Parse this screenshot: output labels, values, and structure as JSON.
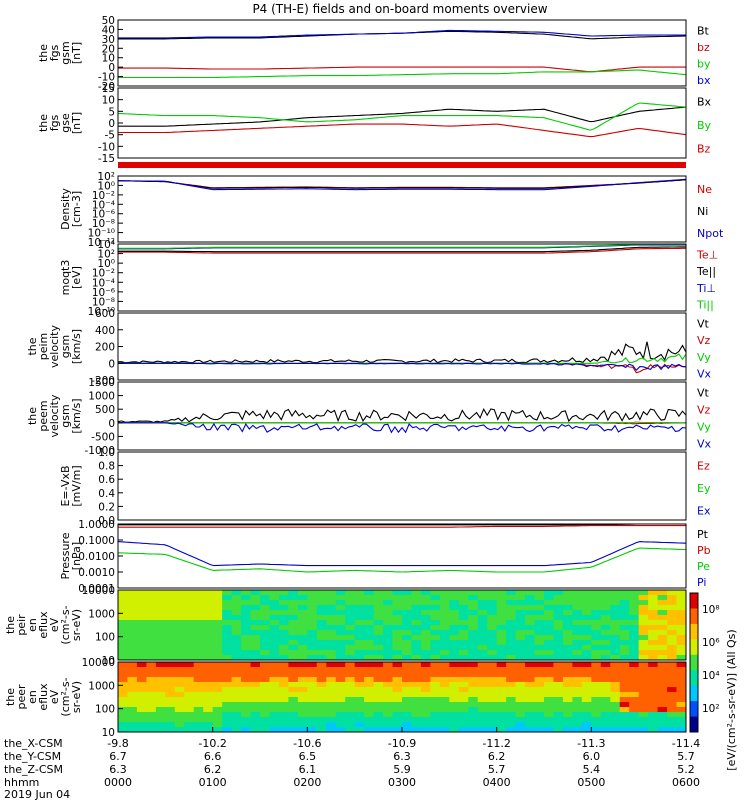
{
  "title": "P4 (TH-E) fields and on-board moments overview",
  "colors": {
    "black": "#000000",
    "red": "#cc0000",
    "green": "#00cc00",
    "blue": "#0000cc"
  },
  "chart_data": [
    {
      "id": "fgs-gsm",
      "type": "line",
      "ylabel": [
        "the",
        "fgs",
        "gsm",
        "[nT]"
      ],
      "yticks": [
        "50",
        "40",
        "30",
        "20",
        "10",
        "0",
        "-10",
        "-20"
      ],
      "ylim": [
        -20,
        50
      ],
      "legend": [
        {
          "name": "Bt",
          "color": "black"
        },
        {
          "name": "bz",
          "color": "red"
        },
        {
          "name": "by",
          "color": "green"
        },
        {
          "name": "bx",
          "color": "blue"
        }
      ],
      "series": [
        {
          "name": "Bt",
          "color": "black",
          "values": [
            30,
            30,
            31,
            31,
            33,
            35,
            36,
            38,
            37,
            35,
            30,
            32,
            33
          ]
        },
        {
          "name": "bz",
          "color": "red",
          "values": [
            -1,
            -1,
            -2,
            -2,
            -1,
            0,
            0,
            0,
            0,
            0,
            -5,
            0,
            0
          ]
        },
        {
          "name": "by",
          "color": "green",
          "values": [
            -11,
            -11,
            -11,
            -10,
            -9,
            -9,
            -8,
            -7,
            -7,
            -5,
            -5,
            -3,
            -8
          ]
        },
        {
          "name": "bx",
          "color": "blue",
          "values": [
            31,
            31,
            32,
            32,
            34,
            35,
            36,
            39,
            38,
            37,
            33,
            34,
            34
          ]
        }
      ]
    },
    {
      "id": "fgs-gse",
      "type": "line",
      "ylabel": [
        "the",
        "fgs",
        "gse",
        "[nT]"
      ],
      "yticks": [
        "15",
        "10",
        "5",
        "0",
        "-5",
        "-10",
        "-15"
      ],
      "ylim": [
        -18,
        15
      ],
      "legend": [
        {
          "name": "Bx",
          "color": "black"
        },
        {
          "name": "By",
          "color": "green"
        },
        {
          "name": "Bz",
          "color": "red"
        }
      ],
      "series": [
        {
          "name": "Bx",
          "color": "black",
          "values": [
            -3,
            -3,
            -2,
            -1,
            1,
            2,
            3,
            5,
            4,
            5,
            -1,
            4,
            6
          ]
        },
        {
          "name": "By",
          "color": "green",
          "values": [
            3,
            2,
            2,
            1,
            -1,
            0,
            2,
            2,
            2,
            1,
            -5,
            8,
            6
          ]
        },
        {
          "name": "Bz",
          "color": "red",
          "values": [
            -6,
            -6,
            -5,
            -4,
            -3,
            -2,
            -2,
            -3,
            -2,
            -5,
            -8,
            -4,
            -7
          ]
        }
      ]
    },
    {
      "id": "density",
      "type": "line",
      "ylabel": [
        "Density",
        "[cm-3]"
      ],
      "yticks": [
        "10²",
        "10⁰",
        "10⁻²",
        "10⁻⁴",
        "10⁻⁶",
        "10⁻⁸",
        "10⁻¹⁰",
        "10⁻¹²"
      ],
      "ylim_log10": [
        -12,
        2
      ],
      "legend": [
        {
          "name": "Ne",
          "color": "red"
        },
        {
          "name": "Ni",
          "color": "black"
        },
        {
          "name": "Npot",
          "color": "blue"
        }
      ],
      "series": [
        {
          "name": "Ne",
          "color": "red",
          "values_log10": [
            1,
            0.8,
            -0.5,
            -0.4,
            -0.3,
            -0.5,
            -0.4,
            -0.4,
            -0.5,
            -0.5,
            0,
            0.5,
            1.2
          ]
        },
        {
          "name": "Ni",
          "color": "black",
          "values_log10": [
            1,
            0.8,
            -0.6,
            -0.5,
            -0.4,
            -0.6,
            -0.5,
            -0.5,
            -0.6,
            -0.6,
            -0.1,
            0.5,
            1.2
          ]
        },
        {
          "name": "Npot",
          "color": "blue",
          "values_log10": [
            1,
            0.9,
            -0.9,
            -0.8,
            -0.7,
            -0.9,
            -0.8,
            -0.8,
            -0.9,
            -0.9,
            -0.2,
            0.6,
            1.3
          ]
        }
      ]
    },
    {
      "id": "temperature",
      "type": "line",
      "ylabel": [
        "moqt3",
        "[eV]"
      ],
      "yticks": [
        "10⁴",
        "10²",
        "10⁰",
        "10⁻²",
        "10⁻⁴",
        "10⁻⁶",
        "10⁻⁸",
        "10⁻¹⁰"
      ],
      "ylim_log10": [
        -10,
        4
      ],
      "legend": [
        {
          "name": "Te⊥",
          "color": "red"
        },
        {
          "name": "Te||",
          "color": "black"
        },
        {
          "name": "Ti⊥",
          "color": "blue"
        },
        {
          "name": "Ti||",
          "color": "green"
        }
      ],
      "series": [
        {
          "name": "Te⊥",
          "color": "red",
          "values_log10": [
            2.3,
            2.3,
            2.1,
            2.1,
            2.1,
            2.1,
            2.1,
            2.1,
            2.1,
            2.1,
            2.4,
            3.0,
            3.1
          ]
        },
        {
          "name": "Te||",
          "color": "black",
          "values_log10": [
            2.5,
            2.5,
            2.4,
            2.4,
            2.4,
            2.4,
            2.4,
            2.4,
            2.4,
            2.4,
            2.7,
            3.3,
            3.4
          ]
        },
        {
          "name": "Ti⊥",
          "color": "blue",
          "values_log10": [
            3.0,
            3.0,
            3.2,
            3.2,
            3.2,
            3.2,
            3.2,
            3.2,
            3.2,
            3.2,
            3.5,
            3.8,
            3.8
          ]
        },
        {
          "name": "Ti||",
          "color": "green",
          "values_log10": [
            3.1,
            3.1,
            3.3,
            3.3,
            3.3,
            3.3,
            3.3,
            3.3,
            3.3,
            3.3,
            3.6,
            3.9,
            3.9
          ]
        }
      ]
    },
    {
      "id": "peim-velocity",
      "type": "line",
      "ylabel": [
        "the",
        "peim",
        "velocity",
        "gsm",
        "[km/s]"
      ],
      "yticks": [
        "600",
        "400",
        "200",
        "0",
        "-200"
      ],
      "ylim": [
        -200,
        600
      ],
      "legend": [
        {
          "name": "Vt",
          "color": "black"
        },
        {
          "name": "Vz",
          "color": "red"
        },
        {
          "name": "Vy",
          "color": "green"
        },
        {
          "name": "Vx",
          "color": "blue"
        }
      ],
      "series": [
        {
          "name": "Vt",
          "color": "black",
          "values": [
            20,
            20,
            25,
            30,
            30,
            30,
            30,
            35,
            35,
            40,
            60,
            200,
            150
          ]
        },
        {
          "name": "Vz",
          "color": "red",
          "values": [
            0,
            0,
            0,
            0,
            0,
            0,
            0,
            0,
            0,
            0,
            -20,
            -80,
            -40
          ]
        },
        {
          "name": "Vy",
          "color": "green",
          "values": [
            0,
            0,
            0,
            0,
            0,
            0,
            0,
            0,
            0,
            0,
            0,
            60,
            80
          ]
        },
        {
          "name": "Vx",
          "color": "blue",
          "values": [
            0,
            0,
            -5,
            -5,
            -5,
            -5,
            -5,
            -5,
            -5,
            -10,
            -30,
            -60,
            -40
          ]
        }
      ]
    },
    {
      "id": "peem-velocity",
      "type": "line",
      "ylabel": [
        "the",
        "peem",
        "velocity",
        "gsm",
        "[km/s]"
      ],
      "yticks": [
        "1500",
        "1000",
        "500",
        "0",
        "-500",
        "-1000"
      ],
      "ylim": [
        -1000,
        1500
      ],
      "legend": [
        {
          "name": "Vt",
          "color": "black"
        },
        {
          "name": "Vz",
          "color": "red"
        },
        {
          "name": "Vy",
          "color": "green"
        },
        {
          "name": "Vx",
          "color": "blue"
        }
      ],
      "series": [
        {
          "name": "Vt",
          "color": "black",
          "values": [
            50,
            50,
            300,
            350,
            350,
            300,
            350,
            300,
            350,
            300,
            300,
            350,
            350
          ]
        },
        {
          "name": "Vz",
          "color": "red",
          "values": [
            0,
            0,
            0,
            0,
            0,
            0,
            0,
            0,
            0,
            0,
            0,
            -30,
            0
          ]
        },
        {
          "name": "Vy",
          "color": "green",
          "values": [
            0,
            0,
            0,
            0,
            0,
            0,
            0,
            0,
            0,
            0,
            0,
            20,
            0
          ]
        },
        {
          "name": "Vx",
          "color": "blue",
          "values": [
            0,
            0,
            -200,
            -250,
            -200,
            -200,
            -250,
            -200,
            -250,
            -200,
            -200,
            -250,
            -200
          ]
        }
      ]
    },
    {
      "id": "e-field",
      "type": "line",
      "ylabel": [
        "E=-VxB",
        "[mV/m]"
      ],
      "yticks": [
        "1.0",
        "0.8",
        "0.6",
        "0.4",
        "0.2",
        "0.0"
      ],
      "ylim": [
        0,
        1
      ],
      "legend": [
        {
          "name": "Ez",
          "color": "red"
        },
        {
          "name": "Ey",
          "color": "green"
        },
        {
          "name": "Ex",
          "color": "blue"
        }
      ],
      "series": []
    },
    {
      "id": "pressure",
      "type": "line",
      "ylabel": [
        "Pressure",
        "[nPa]"
      ],
      "yticks": [
        "1.0000",
        "0.1000",
        "0.0100",
        "0.0010",
        "0.0001"
      ],
      "ylim_log10": [
        -4,
        0
      ],
      "legend": [
        {
          "name": "Pt",
          "color": "black"
        },
        {
          "name": "Pb",
          "color": "red"
        },
        {
          "name": "Pe",
          "color": "green"
        },
        {
          "name": "Pi",
          "color": "blue"
        }
      ],
      "series": [
        {
          "name": "Pt",
          "color": "black",
          "values_log10": [
            -0.05,
            -0.05,
            -0.05,
            -0.05,
            -0.05,
            -0.05,
            -0.05,
            -0.05,
            -0.05,
            -0.05,
            -0.05,
            0,
            0
          ]
        },
        {
          "name": "Pb",
          "color": "red",
          "values_log10": [
            -0.2,
            -0.2,
            -0.2,
            -0.2,
            -0.2,
            -0.2,
            -0.2,
            -0.2,
            -0.15,
            -0.15,
            -0.1,
            -0.1,
            -0.1
          ]
        },
        {
          "name": "Pe",
          "color": "green",
          "values_log10": [
            -1.8,
            -1.9,
            -2.9,
            -2.8,
            -3.0,
            -2.9,
            -3.0,
            -2.9,
            -3.0,
            -3.0,
            -2.7,
            -1.5,
            -1.6
          ]
        },
        {
          "name": "Pi",
          "color": "blue",
          "values_log10": [
            -1.1,
            -1.3,
            -2.6,
            -2.5,
            -2.6,
            -2.6,
            -2.6,
            -2.6,
            -2.6,
            -2.6,
            -2.4,
            -1.1,
            -1.2
          ]
        }
      ]
    },
    {
      "id": "peir-spec",
      "type": "heatmap",
      "ylabel": [
        "the",
        "peir",
        "en",
        "eflux",
        "eV",
        "(cm²-s-",
        "sr-eV)"
      ],
      "yticks": [
        "10000",
        "1000",
        "100",
        "10"
      ],
      "ylim_log10": [
        1,
        4.3
      ]
    },
    {
      "id": "peer-spec",
      "type": "heatmap",
      "ylabel": [
        "the",
        "peer",
        "en",
        "eflux",
        "eV",
        "(cm²-s-",
        "sr-eV)"
      ],
      "yticks": [
        "10000",
        "1000",
        "100",
        "10"
      ],
      "ylim_log10": [
        1,
        4.3
      ]
    }
  ],
  "colorbar": {
    "ticks": [
      "10⁸",
      "10⁶",
      "10⁴",
      "10²"
    ],
    "label": "[eV/(cm²-s-sr-eV)] (All Qs)"
  },
  "xaxis": {
    "rows": [
      {
        "label": "the_X-CSM",
        "values": [
          "-9.8",
          "-10.2",
          "-10.6",
          "-10.9",
          "-11.2",
          "-11.3",
          "-11.4"
        ]
      },
      {
        "label": "the_Y-CSM",
        "values": [
          "6.7",
          "6.6",
          "6.5",
          "6.3",
          "6.2",
          "6.0",
          "5.7"
        ]
      },
      {
        "label": "the_Z-CSM",
        "values": [
          "6.3",
          "6.2",
          "6.1",
          "5.9",
          "5.7",
          "5.4",
          "5.2"
        ]
      },
      {
        "label": "hhmm",
        "values": [
          "0000",
          "0100",
          "0200",
          "0300",
          "0400",
          "0500",
          "0600"
        ]
      }
    ],
    "date": "2019 Jun 04"
  }
}
